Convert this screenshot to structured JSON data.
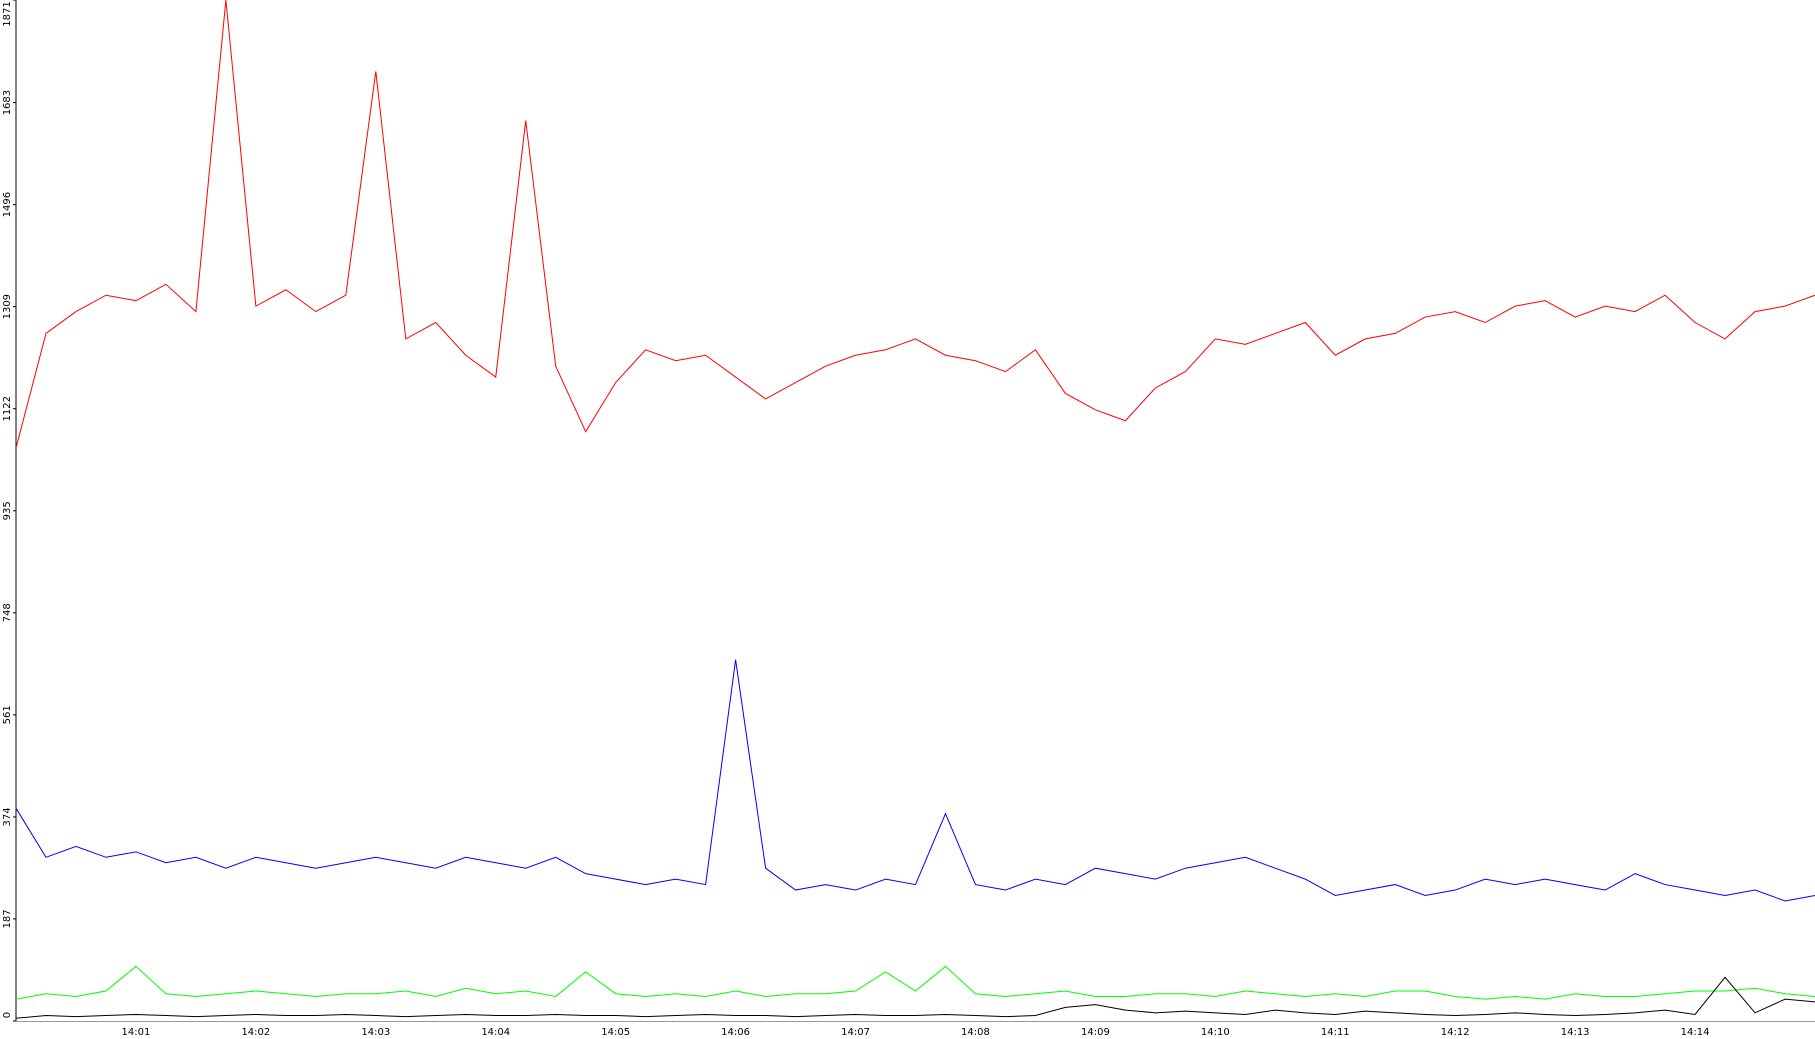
{
  "chart_data": {
    "type": "line",
    "categories": [
      null,
      null,
      null,
      null,
      "14:01",
      null,
      null,
      null,
      "14:02",
      null,
      null,
      null,
      "14:03",
      null,
      null,
      null,
      "14:04",
      null,
      null,
      null,
      "14:05",
      null,
      null,
      null,
      "14:06",
      null,
      null,
      null,
      "14:07",
      null,
      null,
      null,
      "14:08",
      null,
      null,
      null,
      "14:09",
      null,
      null,
      null,
      "14:10",
      null,
      null,
      null,
      "14:11",
      null,
      null,
      null,
      "14:12",
      null,
      null,
      null,
      "14:13",
      null,
      null,
      null,
      "14:14",
      null,
      null,
      null,
      null
    ],
    "series": [
      {
        "color": "#ff0000",
        "values": [
          1050,
          1260,
          1300,
          1330,
          1320,
          1350,
          1300,
          1871,
          1310,
          1340,
          1300,
          1330,
          1740,
          1250,
          1280,
          1220,
          1180,
          1650,
          1200,
          1080,
          1170,
          1230,
          1210,
          1220,
          1180,
          1140,
          1170,
          1200,
          1220,
          1230,
          1250,
          1220,
          1210,
          1190,
          1230,
          1150,
          1120,
          1100,
          1160,
          1190,
          1250,
          1240,
          1260,
          1280,
          1220,
          1250,
          1260,
          1290,
          1300,
          1280,
          1310,
          1320,
          1290,
          1310,
          1300,
          1330,
          1280,
          1250,
          1300,
          1310,
          1330
        ]
      },
      {
        "color": "#0000ff",
        "values": [
          390,
          300,
          320,
          300,
          310,
          290,
          300,
          280,
          300,
          290,
          280,
          290,
          300,
          290,
          280,
          300,
          290,
          280,
          300,
          270,
          260,
          250,
          260,
          250,
          662,
          280,
          240,
          250,
          240,
          260,
          250,
          380,
          250,
          240,
          260,
          250,
          280,
          270,
          260,
          280,
          290,
          300,
          280,
          260,
          230,
          240,
          250,
          230,
          240,
          260,
          250,
          260,
          250,
          240,
          270,
          250,
          240,
          230,
          240,
          220,
          230
        ]
      },
      {
        "color": "#00ff00",
        "values": [
          40,
          50,
          45,
          55,
          100,
          50,
          45,
          50,
          55,
          50,
          45,
          50,
          50,
          55,
          45,
          60,
          50,
          55,
          45,
          90,
          50,
          45,
          50,
          45,
          55,
          45,
          50,
          50,
          55,
          90,
          55,
          100,
          50,
          45,
          50,
          55,
          45,
          45,
          50,
          50,
          45,
          55,
          50,
          45,
          50,
          45,
          55,
          55,
          45,
          40,
          45,
          40,
          50,
          45,
          45,
          50,
          55,
          55,
          60,
          50,
          45
        ]
      },
      {
        "color": "#000000",
        "values": [
          5,
          10,
          8,
          10,
          12,
          10,
          8,
          10,
          12,
          10,
          10,
          12,
          10,
          8,
          10,
          12,
          10,
          10,
          12,
          10,
          10,
          8,
          10,
          12,
          10,
          10,
          8,
          10,
          12,
          10,
          10,
          12,
          10,
          8,
          10,
          25,
          30,
          20,
          15,
          18,
          15,
          12,
          20,
          15,
          12,
          18,
          15,
          12,
          10,
          12,
          15,
          12,
          10,
          12,
          15,
          20,
          12,
          80,
          15,
          40,
          35
        ]
      }
    ],
    "ylim": [
      0,
      1871
    ],
    "yticks": [
      0,
      187,
      374,
      561,
      748,
      935,
      1122,
      1309,
      1496,
      1683,
      1871
    ]
  }
}
